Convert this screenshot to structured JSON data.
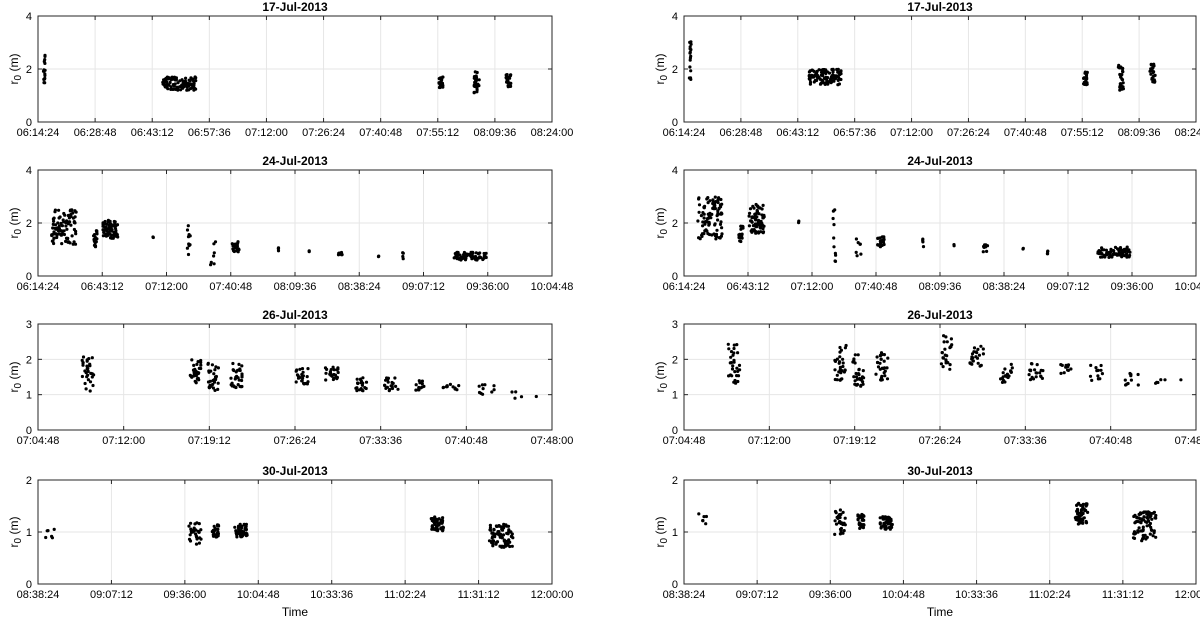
{
  "chart_data": [
    {
      "type": "scatter",
      "title": "17-Jul-2013",
      "ylabel": "r_0 (m)",
      "xlabel": "",
      "xlim": [
        "06:14:24",
        "08:24:00"
      ],
      "xticks": [
        "06:14:24",
        "06:28:48",
        "06:43:12",
        "06:57:36",
        "07:12:00",
        "07:26:24",
        "07:40:48",
        "07:55:12",
        "08:09:36",
        "08:24:00"
      ],
      "ylim": [
        0,
        4
      ],
      "yticks": [
        "0",
        "2",
        "4"
      ],
      "grid": true,
      "clusters": [
        {
          "t": "06:16:00",
          "ymin": 1.4,
          "ymax": 2.6,
          "n": 16,
          "spread_s": 30
        },
        {
          "t": "06:50:00",
          "ymin": 1.2,
          "ymax": 1.7,
          "n": 110,
          "spread_s": 500
        },
        {
          "t": "07:56:00",
          "ymin": 1.3,
          "ymax": 1.7,
          "n": 22,
          "spread_s": 60
        },
        {
          "t": "08:05:00",
          "ymin": 1.1,
          "ymax": 1.9,
          "n": 26,
          "spread_s": 80
        },
        {
          "t": "08:13:00",
          "ymin": 1.3,
          "ymax": 1.8,
          "n": 22,
          "spread_s": 80
        }
      ]
    },
    {
      "type": "scatter",
      "title": "17-Jul-2013",
      "ylabel": "r_0 (m)",
      "xlabel": "",
      "xlim": [
        "06:14:24",
        "08:24:00"
      ],
      "xticks": [
        "06:14:24",
        "06:28:48",
        "06:43:12",
        "06:57:36",
        "07:12:00",
        "07:26:24",
        "07:40:48",
        "07:55:12",
        "08:09:36",
        "08:24:00"
      ],
      "ylim": [
        0,
        4
      ],
      "yticks": [
        "0",
        "2",
        "4"
      ],
      "grid": true,
      "clusters": [
        {
          "t": "06:16:00",
          "ymin": 1.6,
          "ymax": 3.1,
          "n": 16,
          "spread_s": 30
        },
        {
          "t": "06:50:00",
          "ymin": 1.4,
          "ymax": 2.0,
          "n": 110,
          "spread_s": 500
        },
        {
          "t": "07:56:00",
          "ymin": 1.4,
          "ymax": 1.9,
          "n": 22,
          "spread_s": 60
        },
        {
          "t": "08:05:00",
          "ymin": 1.2,
          "ymax": 2.2,
          "n": 26,
          "spread_s": 80
        },
        {
          "t": "08:13:00",
          "ymin": 1.5,
          "ymax": 2.2,
          "n": 22,
          "spread_s": 80
        }
      ]
    },
    {
      "type": "scatter",
      "title": "24-Jul-2013",
      "ylabel": "r_0 (m)",
      "xlabel": "",
      "xlim": [
        "06:14:24",
        "10:04:48"
      ],
      "xticks": [
        "06:14:24",
        "06:43:12",
        "07:12:00",
        "07:40:48",
        "08:09:36",
        "08:38:24",
        "09:07:12",
        "09:36:00",
        "10:04:48"
      ],
      "ylim": [
        0,
        4
      ],
      "yticks": [
        "0",
        "2",
        "4"
      ],
      "grid": true,
      "clusters": [
        {
          "t": "06:26:00",
          "ymin": 1.2,
          "ymax": 2.5,
          "n": 90,
          "spread_s": 660
        },
        {
          "t": "06:40:00",
          "ymin": 1.1,
          "ymax": 1.8,
          "n": 18,
          "spread_s": 120
        },
        {
          "t": "06:47:00",
          "ymin": 1.4,
          "ymax": 2.1,
          "n": 70,
          "spread_s": 420
        },
        {
          "t": "07:06:00",
          "ymin": 1.3,
          "ymax": 1.5,
          "n": 2,
          "spread_s": 20
        },
        {
          "t": "07:22:00",
          "ymin": 0.2,
          "ymax": 1.9,
          "n": 10,
          "spread_s": 80
        },
        {
          "t": "07:33:00",
          "ymin": 0.3,
          "ymax": 1.3,
          "n": 7,
          "spread_s": 150
        },
        {
          "t": "07:43:00",
          "ymin": 0.9,
          "ymax": 1.3,
          "n": 22,
          "spread_s": 200
        },
        {
          "t": "08:02:00",
          "ymin": 0.9,
          "ymax": 1.1,
          "n": 4,
          "spread_s": 30
        },
        {
          "t": "08:16:00",
          "ymin": 0.9,
          "ymax": 1.0,
          "n": 2,
          "spread_s": 20
        },
        {
          "t": "08:30:00",
          "ymin": 0.8,
          "ymax": 0.9,
          "n": 10,
          "spread_s": 120
        },
        {
          "t": "08:47:00",
          "ymin": 0.7,
          "ymax": 0.8,
          "n": 2,
          "spread_s": 20
        },
        {
          "t": "08:58:00",
          "ymin": 0.6,
          "ymax": 0.9,
          "n": 4,
          "spread_s": 20
        },
        {
          "t": "09:28:00",
          "ymin": 0.6,
          "ymax": 0.9,
          "n": 70,
          "spread_s": 900
        }
      ]
    },
    {
      "type": "scatter",
      "title": "24-Jul-2013",
      "ylabel": "r_0 (m)",
      "xlabel": "",
      "xlim": [
        "06:14:24",
        "10:04:48"
      ],
      "xticks": [
        "06:14:24",
        "06:43:12",
        "07:12:00",
        "07:40:48",
        "08:09:36",
        "08:38:24",
        "09:07:12",
        "09:36:00",
        "10:04:48"
      ],
      "ylim": [
        0,
        4
      ],
      "yticks": [
        "0",
        "2",
        "4"
      ],
      "grid": true,
      "clusters": [
        {
          "t": "06:26:00",
          "ymin": 1.4,
          "ymax": 3.0,
          "n": 90,
          "spread_s": 660
        },
        {
          "t": "06:40:00",
          "ymin": 1.3,
          "ymax": 1.9,
          "n": 18,
          "spread_s": 120
        },
        {
          "t": "06:47:00",
          "ymin": 1.6,
          "ymax": 2.7,
          "n": 70,
          "spread_s": 420
        },
        {
          "t": "07:06:00",
          "ymin": 2.0,
          "ymax": 2.1,
          "n": 2,
          "spread_s": 20
        },
        {
          "t": "07:22:00",
          "ymin": 0.5,
          "ymax": 2.5,
          "n": 10,
          "spread_s": 80
        },
        {
          "t": "07:33:00",
          "ymin": 0.6,
          "ymax": 1.5,
          "n": 7,
          "spread_s": 150
        },
        {
          "t": "07:43:00",
          "ymin": 1.1,
          "ymax": 1.5,
          "n": 22,
          "spread_s": 200
        },
        {
          "t": "08:02:00",
          "ymin": 1.1,
          "ymax": 1.4,
          "n": 4,
          "spread_s": 30
        },
        {
          "t": "08:16:00",
          "ymin": 1.1,
          "ymax": 1.2,
          "n": 2,
          "spread_s": 20
        },
        {
          "t": "08:30:00",
          "ymin": 0.9,
          "ymax": 1.2,
          "n": 10,
          "spread_s": 120
        },
        {
          "t": "08:47:00",
          "ymin": 1.0,
          "ymax": 1.1,
          "n": 2,
          "spread_s": 20
        },
        {
          "t": "08:58:00",
          "ymin": 0.8,
          "ymax": 1.0,
          "n": 4,
          "spread_s": 20
        },
        {
          "t": "09:28:00",
          "ymin": 0.7,
          "ymax": 1.1,
          "n": 70,
          "spread_s": 900
        }
      ]
    },
    {
      "type": "scatter",
      "title": "26-Jul-2013",
      "ylabel": "r_0 (m)",
      "xlabel": "",
      "xlim": [
        "07:04:48",
        "07:48:00"
      ],
      "xticks": [
        "07:04:48",
        "07:12:00",
        "07:19:12",
        "07:26:24",
        "07:33:36",
        "07:40:48",
        "07:48:00"
      ],
      "ylim": [
        0,
        3
      ],
      "yticks": [
        "0",
        "1",
        "2",
        "3"
      ],
      "grid": true,
      "clusters": [
        {
          "t": "07:09:00",
          "ymin": 1.1,
          "ymax": 2.1,
          "n": 30,
          "spread_s": 60
        },
        {
          "t": "07:18:00",
          "ymin": 1.3,
          "ymax": 2.0,
          "n": 30,
          "spread_s": 60
        },
        {
          "t": "07:19:30",
          "ymin": 1.1,
          "ymax": 1.9,
          "n": 30,
          "spread_s": 60
        },
        {
          "t": "07:21:30",
          "ymin": 1.2,
          "ymax": 1.9,
          "n": 30,
          "spread_s": 60
        },
        {
          "t": "07:27:00",
          "ymin": 1.3,
          "ymax": 1.8,
          "n": 24,
          "spread_s": 60
        },
        {
          "t": "07:29:30",
          "ymin": 1.4,
          "ymax": 1.8,
          "n": 24,
          "spread_s": 70
        },
        {
          "t": "07:32:00",
          "ymin": 1.1,
          "ymax": 1.5,
          "n": 20,
          "spread_s": 60
        },
        {
          "t": "07:34:30",
          "ymin": 1.1,
          "ymax": 1.5,
          "n": 20,
          "spread_s": 70
        },
        {
          "t": "07:37:00",
          "ymin": 1.1,
          "ymax": 1.4,
          "n": 12,
          "spread_s": 60
        },
        {
          "t": "07:39:30",
          "ymin": 1.1,
          "ymax": 1.3,
          "n": 12,
          "spread_s": 80
        },
        {
          "t": "07:42:30",
          "ymin": 1.0,
          "ymax": 1.3,
          "n": 10,
          "spread_s": 80
        },
        {
          "t": "07:45:00",
          "ymin": 0.9,
          "ymax": 1.1,
          "n": 4,
          "spread_s": 60
        },
        {
          "t": "07:46:40",
          "ymin": 0.9,
          "ymax": 1.0,
          "n": 1,
          "spread_s": 10
        }
      ]
    },
    {
      "type": "scatter",
      "title": "26-Jul-2013",
      "ylabel": "r_0 (m)",
      "xlabel": "",
      "xlim": [
        "07:04:48",
        "07:48:00"
      ],
      "xticks": [
        "07:04:48",
        "07:12:00",
        "07:19:12",
        "07:26:24",
        "07:33:36",
        "07:40:48",
        "07:48:00"
      ],
      "ylim": [
        0,
        3
      ],
      "yticks": [
        "0",
        "1",
        "2",
        "3"
      ],
      "grid": true,
      "clusters": [
        {
          "t": "07:09:00",
          "ymin": 1.3,
          "ymax": 2.5,
          "n": 30,
          "spread_s": 60
        },
        {
          "t": "07:18:00",
          "ymin": 1.4,
          "ymax": 2.4,
          "n": 30,
          "spread_s": 60
        },
        {
          "t": "07:19:30",
          "ymin": 1.2,
          "ymax": 2.2,
          "n": 30,
          "spread_s": 60
        },
        {
          "t": "07:21:30",
          "ymin": 1.4,
          "ymax": 2.2,
          "n": 30,
          "spread_s": 60
        },
        {
          "t": "07:27:00",
          "ymin": 1.7,
          "ymax": 2.7,
          "n": 24,
          "spread_s": 60
        },
        {
          "t": "07:29:30",
          "ymin": 1.7,
          "ymax": 2.4,
          "n": 24,
          "spread_s": 70
        },
        {
          "t": "07:32:00",
          "ymin": 1.3,
          "ymax": 1.9,
          "n": 20,
          "spread_s": 60
        },
        {
          "t": "07:34:30",
          "ymin": 1.4,
          "ymax": 1.9,
          "n": 20,
          "spread_s": 70
        },
        {
          "t": "07:37:00",
          "ymin": 1.6,
          "ymax": 1.9,
          "n": 12,
          "spread_s": 60
        },
        {
          "t": "07:39:30",
          "ymin": 1.4,
          "ymax": 1.9,
          "n": 12,
          "spread_s": 80
        },
        {
          "t": "07:42:30",
          "ymin": 1.2,
          "ymax": 1.6,
          "n": 10,
          "spread_s": 80
        },
        {
          "t": "07:45:00",
          "ymin": 1.3,
          "ymax": 1.6,
          "n": 5,
          "spread_s": 60
        },
        {
          "t": "07:46:40",
          "ymin": 1.4,
          "ymax": 1.5,
          "n": 1,
          "spread_s": 10
        }
      ]
    },
    {
      "type": "scatter",
      "title": "30-Jul-2013",
      "ylabel": "r_0 (m)",
      "xlabel": "Time",
      "xlim": [
        "08:38:24",
        "12:00:00"
      ],
      "xticks": [
        "08:38:24",
        "09:07:12",
        "09:36:00",
        "10:04:48",
        "10:33:36",
        "11:02:24",
        "11:31:12",
        "12:00:00"
      ],
      "ylim": [
        0,
        2
      ],
      "yticks": [
        "0",
        "1",
        "2"
      ],
      "grid": true,
      "clusters": [
        {
          "t": "08:43:00",
          "ymin": 0.8,
          "ymax": 1.05,
          "n": 6,
          "spread_s": 240
        },
        {
          "t": "09:40:00",
          "ymin": 0.75,
          "ymax": 1.2,
          "n": 30,
          "spread_s": 300
        },
        {
          "t": "09:48:00",
          "ymin": 0.9,
          "ymax": 1.15,
          "n": 30,
          "spread_s": 150
        },
        {
          "t": "09:58:00",
          "ymin": 0.9,
          "ymax": 1.15,
          "n": 50,
          "spread_s": 300
        },
        {
          "t": "11:15:00",
          "ymin": 1.0,
          "ymax": 1.3,
          "n": 50,
          "spread_s": 300
        },
        {
          "t": "11:40:00",
          "ymin": 0.7,
          "ymax": 1.15,
          "n": 80,
          "spread_s": 560
        }
      ]
    },
    {
      "type": "scatter",
      "title": "30-Jul-2013",
      "ylabel": "r_0 (m)",
      "xlabel": "Time",
      "xlim": [
        "08:38:24",
        "12:00:00"
      ],
      "xticks": [
        "08:38:24",
        "09:07:12",
        "09:36:00",
        "10:04:48",
        "10:33:36",
        "11:02:24",
        "11:31:12",
        "12:00:00"
      ],
      "ylim": [
        0,
        2
      ],
      "yticks": [
        "0",
        "1",
        "2"
      ],
      "grid": true,
      "clusters": [
        {
          "t": "08:45:00",
          "ymin": 1.1,
          "ymax": 1.35,
          "n": 6,
          "spread_s": 280
        },
        {
          "t": "09:40:00",
          "ymin": 0.95,
          "ymax": 1.45,
          "n": 30,
          "spread_s": 300
        },
        {
          "t": "09:48:00",
          "ymin": 1.05,
          "ymax": 1.35,
          "n": 30,
          "spread_s": 150
        },
        {
          "t": "09:58:00",
          "ymin": 1.05,
          "ymax": 1.3,
          "n": 50,
          "spread_s": 300
        },
        {
          "t": "11:15:00",
          "ymin": 1.15,
          "ymax": 1.55,
          "n": 50,
          "spread_s": 300
        },
        {
          "t": "11:40:00",
          "ymin": 0.8,
          "ymax": 1.4,
          "n": 80,
          "spread_s": 560
        }
      ]
    }
  ]
}
